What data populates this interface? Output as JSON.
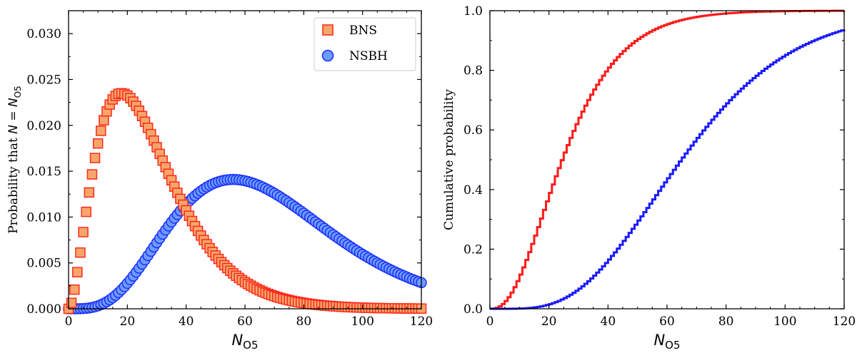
{
  "chart_data": [
    {
      "type": "scatter",
      "panel": "left",
      "xlabel": "N_O5",
      "xlabel_main": "N",
      "xlabel_sub": "O5",
      "ylabel": "Probability that N = N_O5",
      "ylabel_prefix": "Probability that ",
      "ylabel_n": "N",
      "ylabel_eq": " = ",
      "ylabel_n2": "N",
      "ylabel_sub": "O5",
      "xlim": [
        0,
        120
      ],
      "ylim": [
        0,
        0.0325
      ],
      "xticks": [
        "0",
        "20",
        "40",
        "60",
        "80",
        "100",
        "120"
      ],
      "yticks": [
        "0.000",
        "0.005",
        "0.010",
        "0.015",
        "0.020",
        "0.025",
        "0.030"
      ],
      "legend_position": "top-right",
      "series": [
        {
          "name": "BNS",
          "marker": "square",
          "face_color": "#f7a66b",
          "edge_color": "#ff2a1a",
          "distribution": {
            "kind": "gamma-like",
            "shape": 2.85,
            "mode": 18,
            "peak": 0.0235
          },
          "x_range": [
            0,
            120
          ]
        },
        {
          "name": "NSBH",
          "marker": "circle",
          "face_color": "#6e9bff",
          "edge_color": "#1a2fff",
          "distribution": {
            "kind": "gamma-like",
            "shape": 5.2,
            "mode": 56,
            "peak": 0.0141
          },
          "x_range": [
            0,
            120
          ]
        }
      ]
    },
    {
      "type": "line",
      "panel": "right",
      "xlabel": "N_O5",
      "xlabel_main": "N",
      "xlabel_sub": "O5",
      "ylabel": "Cumulative probability",
      "xlim": [
        0,
        120
      ],
      "ylim": [
        0,
        1.0
      ],
      "xticks": [
        "0",
        "20",
        "40",
        "60",
        "80",
        "100",
        "120"
      ],
      "yticks": [
        "0.0",
        "0.2",
        "0.4",
        "0.6",
        "0.8",
        "1.0"
      ],
      "series": [
        {
          "name": "BNS",
          "color": "#ff1a1a",
          "cumulative_of": "BNS"
        },
        {
          "name": "NSBH",
          "color": "#1a1aff",
          "cumulative_of": "NSBH"
        }
      ]
    }
  ]
}
